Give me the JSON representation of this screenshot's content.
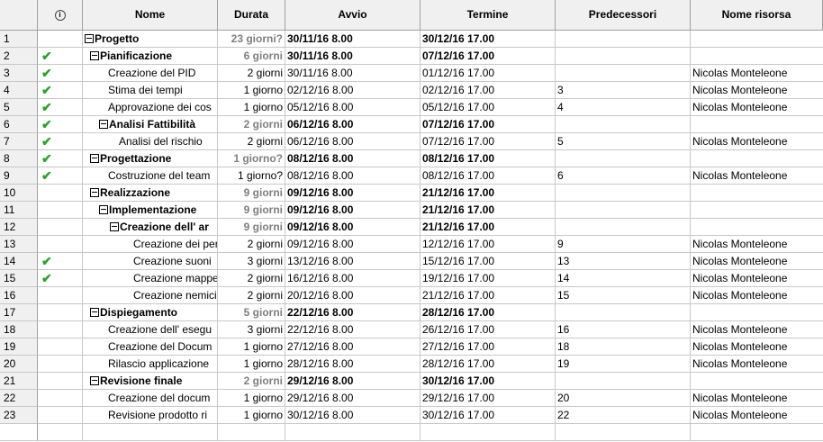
{
  "columns": {
    "info_icon": "info-icon",
    "nome": "Nome",
    "durata": "Durata",
    "avvio": "Avvio",
    "termine": "Termine",
    "predecessori": "Predecessori",
    "risorsa": "Nome risorsa"
  },
  "rows": [
    {
      "id": "1",
      "done": false,
      "level": 0,
      "summary": true,
      "name": "Progetto",
      "duration": "23 giorni?",
      "start": "30/11/16 8.00",
      "end": "30/12/16 17.00",
      "pred": "",
      "res": ""
    },
    {
      "id": "2",
      "done": true,
      "level": 1,
      "summary": true,
      "name": "Pianificazione",
      "duration": "6 giorni",
      "start": "30/11/16 8.00",
      "end": "07/12/16 17.00",
      "pred": "",
      "res": ""
    },
    {
      "id": "3",
      "done": true,
      "level": 2,
      "summary": false,
      "name": "Creazione del PID",
      "duration": "2 giorni",
      "start": "30/11/16 8.00",
      "end": "01/12/16 17.00",
      "pred": "",
      "res": "Nicolas Monteleone"
    },
    {
      "id": "4",
      "done": true,
      "level": 2,
      "summary": false,
      "name": "Stima dei tempi",
      "duration": "1 giorno",
      "start": "02/12/16 8.00",
      "end": "02/12/16 17.00",
      "pred": "3",
      "res": "Nicolas Monteleone"
    },
    {
      "id": "5",
      "done": true,
      "level": 2,
      "summary": false,
      "name": "Approvazione dei cos",
      "duration": "1 giorno",
      "start": "05/12/16 8.00",
      "end": "05/12/16 17.00",
      "pred": "4",
      "res": "Nicolas Monteleone"
    },
    {
      "id": "6",
      "done": true,
      "level": 2,
      "summary": true,
      "name": "Analisi Fattibilità",
      "duration": "2 giorni",
      "start": "06/12/16 8.00",
      "end": "07/12/16 17.00",
      "pred": "",
      "res": ""
    },
    {
      "id": "7",
      "done": true,
      "level": 3,
      "summary": false,
      "name": "Analisi del rischio",
      "duration": "2 giorni",
      "start": "06/12/16 8.00",
      "end": "07/12/16 17.00",
      "pred": "5",
      "res": "Nicolas Monteleone"
    },
    {
      "id": "8",
      "done": true,
      "level": 1,
      "summary": true,
      "name": "Progettazione",
      "duration": "1 giorno?",
      "start": "08/12/16 8.00",
      "end": "08/12/16 17.00",
      "pred": "",
      "res": ""
    },
    {
      "id": "9",
      "done": true,
      "level": 2,
      "summary": false,
      "name": "Costruzione del team",
      "duration": "1 giorno?",
      "start": "08/12/16 8.00",
      "end": "08/12/16 17.00",
      "pred": "6",
      "res": "Nicolas Monteleone"
    },
    {
      "id": "10",
      "done": false,
      "level": 1,
      "summary": true,
      "name": "Realizzazione",
      "duration": "9 giorni",
      "start": "09/12/16 8.00",
      "end": "21/12/16 17.00",
      "pred": "",
      "res": ""
    },
    {
      "id": "11",
      "done": false,
      "level": 2,
      "summary": true,
      "name": "Implementazione",
      "duration": "9 giorni",
      "start": "09/12/16 8.00",
      "end": "21/12/16 17.00",
      "pred": "",
      "res": ""
    },
    {
      "id": "12",
      "done": false,
      "level": 3,
      "summary": true,
      "name": "Creazione dell' ar",
      "duration": "9 giorni",
      "start": "09/12/16 8.00",
      "end": "21/12/16 17.00",
      "pred": "",
      "res": ""
    },
    {
      "id": "13",
      "done": false,
      "level": 4,
      "summary": false,
      "name": "Creazione dei per",
      "duration": "2 giorni",
      "start": "09/12/16 8.00",
      "end": "12/12/16 17.00",
      "pred": "9",
      "res": "Nicolas Monteleone"
    },
    {
      "id": "14",
      "done": true,
      "level": 4,
      "summary": false,
      "name": "Creazione suoni",
      "duration": "3 giorni",
      "start": "13/12/16 8.00",
      "end": "15/12/16 17.00",
      "pred": "13",
      "res": "Nicolas Monteleone"
    },
    {
      "id": "15",
      "done": true,
      "level": 4,
      "summary": false,
      "name": "Creazione mappe",
      "duration": "2 giorni",
      "start": "16/12/16 8.00",
      "end": "19/12/16 17.00",
      "pred": "14",
      "res": "Nicolas Monteleone"
    },
    {
      "id": "16",
      "done": false,
      "level": 4,
      "summary": false,
      "name": "Creazione nemici",
      "duration": "2 giorni",
      "start": "20/12/16 8.00",
      "end": "21/12/16 17.00",
      "pred": "15",
      "res": "Nicolas Monteleone"
    },
    {
      "id": "17",
      "done": false,
      "level": 1,
      "summary": true,
      "name": "Dispiegamento",
      "duration": "5 giorni",
      "start": "22/12/16 8.00",
      "end": "28/12/16 17.00",
      "pred": "",
      "res": ""
    },
    {
      "id": "18",
      "done": false,
      "level": 2,
      "summary": false,
      "name": "Creazione dell' esegu",
      "duration": "3 giorni",
      "start": "22/12/16 8.00",
      "end": "26/12/16 17.00",
      "pred": "16",
      "res": "Nicolas Monteleone"
    },
    {
      "id": "19",
      "done": false,
      "level": 2,
      "summary": false,
      "name": "Creazione del Docum",
      "duration": "1 giorno",
      "start": "27/12/16 8.00",
      "end": "27/12/16 17.00",
      "pred": "18",
      "res": "Nicolas Monteleone"
    },
    {
      "id": "20",
      "done": false,
      "level": 2,
      "summary": false,
      "name": "Rilascio applicazione",
      "duration": "1 giorno",
      "start": "28/12/16 8.00",
      "end": "28/12/16 17.00",
      "pred": "19",
      "res": "Nicolas Monteleone"
    },
    {
      "id": "21",
      "done": false,
      "level": 1,
      "summary": true,
      "name": "Revisione finale",
      "duration": "2 giorni",
      "start": "29/12/16 8.00",
      "end": "30/12/16 17.00",
      "pred": "",
      "res": ""
    },
    {
      "id": "22",
      "done": false,
      "level": 2,
      "summary": false,
      "name": "Creazione del docum",
      "duration": "1 giorno",
      "start": "29/12/16 8.00",
      "end": "29/12/16 17.00",
      "pred": "20",
      "res": "Nicolas Monteleone"
    },
    {
      "id": "23",
      "done": false,
      "level": 2,
      "summary": false,
      "name": "Revisione prodotto ri",
      "duration": "1 giorno",
      "start": "30/12/16 8.00",
      "end": "30/12/16 17.00",
      "pred": "22",
      "res": "Nicolas Monteleone"
    }
  ],
  "icons": {
    "done": "checkmark-icon",
    "collapse": "collapse-box-icon"
  },
  "colors": {
    "check": "#2e9e2e",
    "summary_duration": "#7f7f7f",
    "header_bg": "#f0f0f0"
  }
}
